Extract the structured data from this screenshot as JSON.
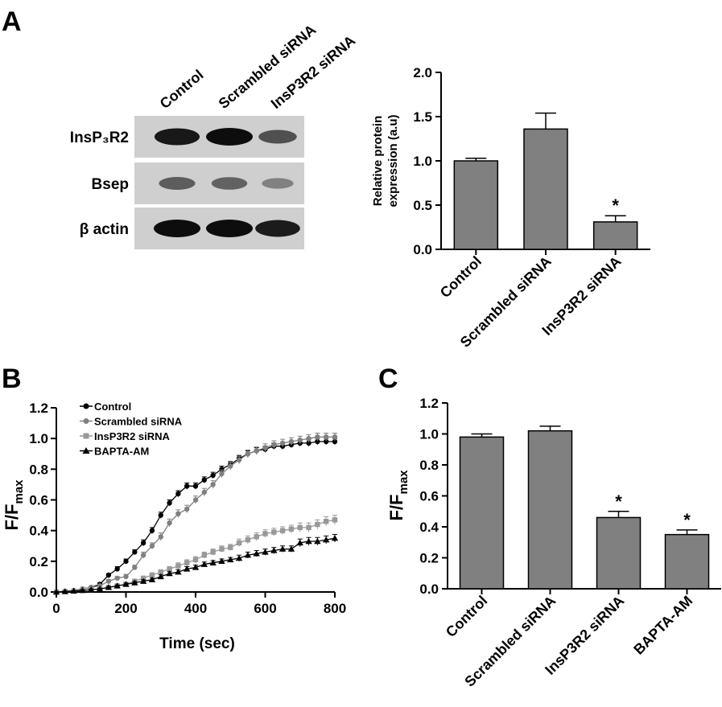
{
  "panels": {
    "a": "A",
    "b": "B",
    "c": "C"
  },
  "blot": {
    "lanes": [
      "Control",
      "Scrambled siRNA",
      "InsP3R2 siRNA"
    ],
    "rows": [
      {
        "label": "InsP₃R2",
        "intensity": [
          0.92,
          1.0,
          0.55
        ]
      },
      {
        "label": "Bsep",
        "intensity": [
          0.45,
          0.42,
          0.2
        ]
      },
      {
        "label": "β actin",
        "intensity": [
          1.0,
          1.0,
          0.9
        ]
      }
    ],
    "background_color": "#cfcfcf",
    "band_color": "#0d0d0d"
  },
  "chart_data": [
    {
      "panel": "A",
      "type": "bar",
      "ylabel_lines": [
        "Relative protein",
        "expression (a.u)"
      ],
      "categories": [
        "Control",
        "Scrambled siRNA",
        "InsP3R2 siRNA"
      ],
      "values": [
        1.0,
        1.36,
        0.31
      ],
      "errors": [
        0.03,
        0.18,
        0.07
      ],
      "significance": [
        "",
        "",
        "*"
      ],
      "ylim": [
        0,
        2.0
      ],
      "yticks": [
        "0.0",
        "0.5",
        "1.0",
        "1.5",
        "2.0"
      ],
      "bar_color": "#808080"
    },
    {
      "panel": "B",
      "type": "line",
      "xlabel": "Time (sec)",
      "ylabel": "F/F",
      "ylabel_sub": "max",
      "xlim": [
        0,
        800
      ],
      "ylim": [
        0,
        1.2
      ],
      "xticks": [
        "0",
        "200",
        "400",
        "600",
        "800"
      ],
      "yticks": [
        "0.0",
        "0.2",
        "0.4",
        "0.6",
        "0.8",
        "1.0",
        "1.2"
      ],
      "legend_position": "top-left",
      "x": [
        0,
        25,
        50,
        75,
        100,
        125,
        150,
        175,
        200,
        225,
        250,
        275,
        300,
        325,
        350,
        375,
        400,
        425,
        450,
        475,
        500,
        525,
        550,
        575,
        600,
        625,
        650,
        675,
        700,
        725,
        750,
        775,
        800
      ],
      "series": [
        {
          "name": "Control",
          "marker": "circle",
          "color": "#000000",
          "values": [
            0.0,
            0.005,
            0.01,
            0.02,
            0.03,
            0.05,
            0.11,
            0.15,
            0.2,
            0.26,
            0.32,
            0.4,
            0.5,
            0.58,
            0.64,
            0.69,
            0.69,
            0.73,
            0.76,
            0.8,
            0.83,
            0.87,
            0.9,
            0.92,
            0.93,
            0.95,
            0.95,
            0.96,
            0.97,
            0.97,
            0.98,
            0.98,
            0.98
          ],
          "errors": [
            0.005,
            0.005,
            0.005,
            0.005,
            0.005,
            0.01,
            0.01,
            0.015,
            0.015,
            0.015,
            0.02,
            0.02,
            0.02,
            0.02,
            0.02,
            0.02,
            0.02,
            0.02,
            0.02,
            0.02,
            0.02,
            0.02,
            0.02,
            0.02,
            0.02,
            0.02,
            0.02,
            0.02,
            0.02,
            0.02,
            0.02,
            0.02,
            0.02
          ]
        },
        {
          "name": "Scrambled siRNA",
          "marker": "circle",
          "color": "#808080",
          "values": [
            0.0,
            0.005,
            0.01,
            0.02,
            0.03,
            0.04,
            0.07,
            0.09,
            0.1,
            0.16,
            0.24,
            0.3,
            0.36,
            0.45,
            0.51,
            0.54,
            0.6,
            0.65,
            0.7,
            0.77,
            0.82,
            0.86,
            0.9,
            0.92,
            0.94,
            0.96,
            0.97,
            0.98,
            0.99,
            1.0,
            1.01,
            1.01,
            1.01
          ],
          "errors": [
            0.005,
            0.005,
            0.005,
            0.005,
            0.005,
            0.01,
            0.01,
            0.01,
            0.015,
            0.015,
            0.02,
            0.02,
            0.025,
            0.025,
            0.025,
            0.025,
            0.025,
            0.025,
            0.025,
            0.025,
            0.025,
            0.025,
            0.025,
            0.025,
            0.025,
            0.025,
            0.025,
            0.025,
            0.025,
            0.025,
            0.025,
            0.025,
            0.025
          ]
        },
        {
          "name": "InsP3R2 siRNA",
          "marker": "square",
          "color": "#999999",
          "values": [
            0.0,
            0.003,
            0.006,
            0.01,
            0.015,
            0.02,
            0.03,
            0.04,
            0.05,
            0.07,
            0.09,
            0.11,
            0.13,
            0.15,
            0.17,
            0.19,
            0.21,
            0.24,
            0.26,
            0.28,
            0.29,
            0.32,
            0.34,
            0.36,
            0.38,
            0.39,
            0.4,
            0.41,
            0.42,
            0.42,
            0.44,
            0.46,
            0.47
          ],
          "errors": [
            0.003,
            0.003,
            0.003,
            0.005,
            0.005,
            0.005,
            0.005,
            0.008,
            0.01,
            0.01,
            0.012,
            0.015,
            0.015,
            0.015,
            0.02,
            0.02,
            0.02,
            0.02,
            0.02,
            0.02,
            0.02,
            0.025,
            0.025,
            0.025,
            0.025,
            0.025,
            0.025,
            0.025,
            0.03,
            0.03,
            0.03,
            0.03,
            0.03
          ]
        },
        {
          "name": "BAPTA-AM",
          "marker": "triangle",
          "color": "#000000",
          "values": [
            0.0,
            0.003,
            0.006,
            0.01,
            0.015,
            0.02,
            0.03,
            0.04,
            0.05,
            0.06,
            0.07,
            0.08,
            0.1,
            0.12,
            0.13,
            0.15,
            0.16,
            0.18,
            0.19,
            0.2,
            0.21,
            0.22,
            0.24,
            0.25,
            0.26,
            0.27,
            0.28,
            0.28,
            0.32,
            0.33,
            0.33,
            0.34,
            0.35
          ],
          "errors": [
            0.003,
            0.003,
            0.003,
            0.005,
            0.005,
            0.005,
            0.005,
            0.005,
            0.008,
            0.008,
            0.01,
            0.01,
            0.012,
            0.012,
            0.015,
            0.015,
            0.015,
            0.015,
            0.015,
            0.015,
            0.015,
            0.02,
            0.02,
            0.02,
            0.02,
            0.02,
            0.02,
            0.02,
            0.025,
            0.025,
            0.025,
            0.025,
            0.025
          ]
        }
      ]
    },
    {
      "panel": "C",
      "type": "bar",
      "ylabel": "F/F",
      "ylabel_sub": "max",
      "categories": [
        "Control",
        "Scrambled siRNA",
        "InsP3R2 siRNA",
        "BAPTA-AM"
      ],
      "values": [
        0.98,
        1.02,
        0.46,
        0.35
      ],
      "errors": [
        0.02,
        0.03,
        0.04,
        0.03
      ],
      "significance": [
        "",
        "",
        "*",
        "*"
      ],
      "ylim": [
        0,
        1.2
      ],
      "yticks": [
        "0.0",
        "0.2",
        "0.4",
        "0.6",
        "0.8",
        "1.0",
        "1.2"
      ],
      "bar_color": "#808080"
    }
  ]
}
